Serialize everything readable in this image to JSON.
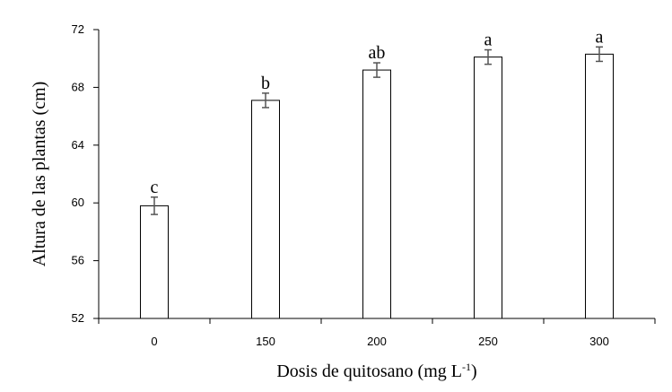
{
  "chart_data": {
    "type": "bar",
    "title": "",
    "xlabel_main": "Dosis de quitosano (mg L",
    "xlabel_sup": "-1",
    "xlabel_tail": ")",
    "ylabel": "Altura de las plantas (cm)",
    "categories": [
      "0",
      "150",
      "200",
      "250",
      "300"
    ],
    "values": [
      59.8,
      67.1,
      69.2,
      70.1,
      70.3
    ],
    "error": [
      0.6,
      0.5,
      0.5,
      0.5,
      0.5
    ],
    "significance": [
      "c",
      "b",
      "ab",
      "a",
      "a"
    ],
    "ylim": [
      52,
      72
    ],
    "yticks": [
      52,
      56,
      60,
      64,
      68,
      72
    ],
    "grid": false,
    "bar_fill": "#ffffff",
    "bar_stroke": "#000000",
    "error_color": "#555555"
  }
}
